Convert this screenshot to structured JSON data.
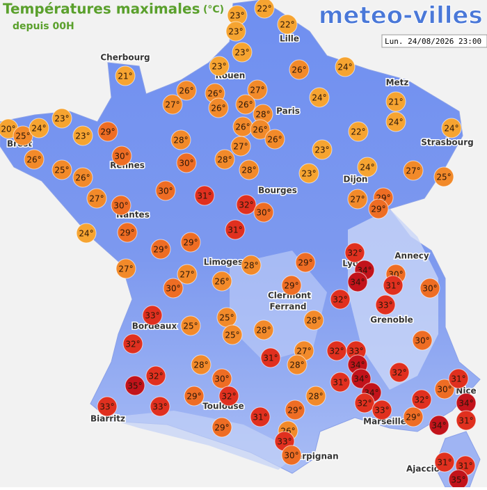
{
  "header": {
    "title": "Températures maximales",
    "unit": "(°C)",
    "subtitle": "depuis 00H",
    "logo": "meteo-villes",
    "date": "Lun. 24/08/2026 23:00"
  },
  "cities": [
    "Cherbourg",
    "Lille",
    "Rouen",
    "Paris",
    "Metz",
    "Brest",
    "Rennes",
    "Strasbourg",
    "Dijon",
    "Bourges",
    "Nantes",
    "Annecy",
    "Lyon",
    "Limoges",
    "Clermont",
    "Ferrand",
    "Grenoble",
    "Bordeaux",
    "Nice",
    "Toulouse",
    "Marseille",
    "Biarritz",
    "Perpignan",
    "Ajaccio"
  ],
  "markers": [
    {
      "value": 23,
      "label": "23°"
    },
    {
      "value": 22,
      "label": "22°"
    },
    {
      "value": 23,
      "label": "23°"
    },
    {
      "value": 22,
      "label": "22°"
    },
    {
      "value": 23,
      "label": "23°"
    },
    {
      "value": 23,
      "label": "23°"
    },
    {
      "value": 26,
      "label": "26°"
    },
    {
      "value": 24,
      "label": "24°"
    },
    {
      "value": 21,
      "label": "21°"
    },
    {
      "value": 26,
      "label": "26°"
    },
    {
      "value": 26,
      "label": "26°"
    },
    {
      "value": 27,
      "label": "27°"
    },
    {
      "value": 27,
      "label": "27°"
    },
    {
      "value": 26,
      "label": "26°"
    },
    {
      "value": 26,
      "label": "26°"
    },
    {
      "value": 28,
      "label": "28°"
    },
    {
      "value": 24,
      "label": "24°"
    },
    {
      "value": 21,
      "label": "21°"
    },
    {
      "value": 23,
      "label": "23°"
    },
    {
      "value": 20,
      "label": "20°"
    },
    {
      "value": 25,
      "label": "25°"
    },
    {
      "value": 24,
      "label": "24°"
    },
    {
      "value": 23,
      "label": "23°"
    },
    {
      "value": 29,
      "label": "29°"
    },
    {
      "value": 26,
      "label": "26°"
    },
    {
      "value": 26,
      "label": "26°"
    },
    {
      "value": 26,
      "label": "26°"
    },
    {
      "value": 22,
      "label": "22°"
    },
    {
      "value": 24,
      "label": "24°"
    },
    {
      "value": 24,
      "label": "24°"
    },
    {
      "value": 28,
      "label": "28°"
    },
    {
      "value": 27,
      "label": "27°"
    },
    {
      "value": 26,
      "label": "26°"
    },
    {
      "value": 30,
      "label": "30°"
    },
    {
      "value": 23,
      "label": "23°"
    },
    {
      "value": 25,
      "label": "25°"
    },
    {
      "value": 26,
      "label": "26°"
    },
    {
      "value": 30,
      "label": "30°"
    },
    {
      "value": 28,
      "label": "28°"
    },
    {
      "value": 28,
      "label": "28°"
    },
    {
      "value": 23,
      "label": "23°"
    },
    {
      "value": 24,
      "label": "24°"
    },
    {
      "value": 27,
      "label": "27°"
    },
    {
      "value": 25,
      "label": "25°"
    },
    {
      "value": 30,
      "label": "30°"
    },
    {
      "value": 31,
      "label": "31°"
    },
    {
      "value": 32,
      "label": "32°"
    },
    {
      "value": 27,
      "label": "27°"
    },
    {
      "value": 30,
      "label": "30°"
    },
    {
      "value": 27,
      "label": "27°"
    },
    {
      "value": 29,
      "label": "29°"
    },
    {
      "value": 29,
      "label": "29°"
    },
    {
      "value": 30,
      "label": "30°"
    },
    {
      "value": 24,
      "label": "24°"
    },
    {
      "value": 29,
      "label": "29°"
    },
    {
      "value": 31,
      "label": "31°"
    },
    {
      "value": 29,
      "label": "29°"
    },
    {
      "value": 29,
      "label": "29°"
    },
    {
      "value": 32,
      "label": "32°"
    },
    {
      "value": 34,
      "label": "34°"
    },
    {
      "value": 30,
      "label": "30°"
    },
    {
      "value": 28,
      "label": "28°"
    },
    {
      "value": 29,
      "label": "29°"
    },
    {
      "value": 27,
      "label": "27°"
    },
    {
      "value": 27,
      "label": "27°"
    },
    {
      "value": 26,
      "label": "26°"
    },
    {
      "value": 34,
      "label": "34°"
    },
    {
      "value": 31,
      "label": "31°"
    },
    {
      "value": 30,
      "label": "30°"
    },
    {
      "value": 30,
      "label": "30°"
    },
    {
      "value": 29,
      "label": "29°"
    },
    {
      "value": 32,
      "label": "32°"
    },
    {
      "value": 33,
      "label": "33°"
    },
    {
      "value": 33,
      "label": "33°"
    },
    {
      "value": 28,
      "label": "28°"
    },
    {
      "value": 25,
      "label": "25°"
    },
    {
      "value": 25,
      "label": "25°"
    },
    {
      "value": 25,
      "label": "25°"
    },
    {
      "value": 28,
      "label": "28°"
    },
    {
      "value": 32,
      "label": "32°"
    },
    {
      "value": 30,
      "label": "30°"
    },
    {
      "value": 27,
      "label": "27°"
    },
    {
      "value": 31,
      "label": "31°"
    },
    {
      "value": 32,
      "label": "32°"
    },
    {
      "value": 33,
      "label": "33°"
    },
    {
      "value": 34,
      "label": "34°"
    },
    {
      "value": 28,
      "label": "28°"
    },
    {
      "value": 28,
      "label": "28°"
    },
    {
      "value": 32,
      "label": "32°"
    },
    {
      "value": 35,
      "label": "35°"
    },
    {
      "value": 30,
      "label": "30°"
    },
    {
      "value": 34,
      "label": "34°"
    },
    {
      "value": 32,
      "label": "32°"
    },
    {
      "value": 30,
      "label": "30°"
    },
    {
      "value": 31,
      "label": "31°"
    },
    {
      "value": 31,
      "label": "31°"
    },
    {
      "value": 34,
      "label": "34°"
    },
    {
      "value": 28,
      "label": "28°"
    },
    {
      "value": 32,
      "label": "32°"
    },
    {
      "value": 29,
      "label": "29°"
    },
    {
      "value": 32,
      "label": "32°"
    },
    {
      "value": 32,
      "label": "32°"
    },
    {
      "value": 34,
      "label": "34°"
    },
    {
      "value": 33,
      "label": "33°"
    },
    {
      "value": 33,
      "label": "33°"
    },
    {
      "value": 33,
      "label": "33°"
    },
    {
      "value": 29,
      "label": "29°"
    },
    {
      "value": 29,
      "label": "29°"
    },
    {
      "value": 31,
      "label": "31°"
    },
    {
      "value": 34,
      "label": "34°"
    },
    {
      "value": 31,
      "label": "31°"
    },
    {
      "value": 29,
      "label": "29°"
    },
    {
      "value": 26,
      "label": "26°"
    },
    {
      "value": 33,
      "label": "33°"
    },
    {
      "value": 30,
      "label": "30°"
    },
    {
      "value": 31,
      "label": "31°"
    },
    {
      "value": 31,
      "label": "31°"
    },
    {
      "value": 35,
      "label": "35°"
    }
  ]
}
